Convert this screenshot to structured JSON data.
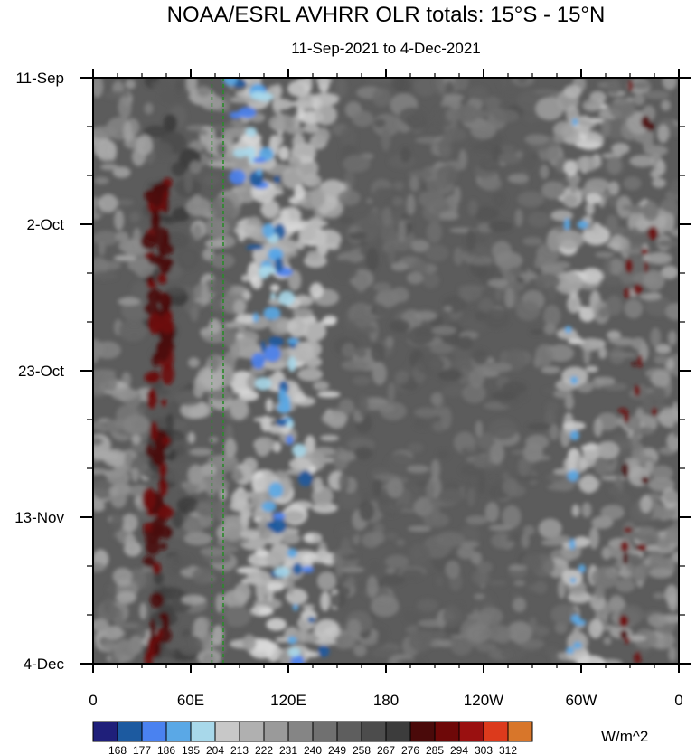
{
  "chart_data": {
    "type": "heatmap",
    "title": "NOAA/ESRL AVHRR OLR totals: 15°S - 15°N",
    "subtitle": "11-Sep-2021 to 4-Dec-2021",
    "x_tick_labels": [
      "0",
      "60E",
      "120E",
      "180",
      "120W",
      "60W",
      "0"
    ],
    "x_tick_lon": [
      0,
      60,
      120,
      180,
      240,
      300,
      360
    ],
    "xlim": [
      0,
      360
    ],
    "y_tick_labels": [
      "11-Sep",
      "2-Oct",
      "23-Oct",
      "13-Nov",
      "4-Dec"
    ],
    "y_tick_day": [
      0,
      21,
      42,
      63,
      84
    ],
    "ylim": [
      0,
      84
    ],
    "colorbar_units": "W/m^2",
    "colorbar_levels": [
      "168",
      "177",
      "186",
      "195",
      "204",
      "213",
      "222",
      "231",
      "240",
      "249",
      "258",
      "267",
      "276",
      "285",
      "294",
      "303",
      "312"
    ],
    "colorbar_colors": [
      "#1f1f7a",
      "#1c5aa0",
      "#4a82f0",
      "#5aa8e6",
      "#a8d8ea",
      "#c8c8c8",
      "#b0b0b0",
      "#9a9a9a",
      "#858585",
      "#707070",
      "#5e5e5e",
      "#4c4c4c",
      "#3c3c3c",
      "#4a0a0a",
      "#6e0808",
      "#9a1010",
      "#dc3a1c",
      "#d8762a"
    ],
    "reference_lines_lon": [
      73,
      80
    ],
    "reference_line_color": "#2a8a2a",
    "features": {
      "convective_band_lon": [
        90,
        150
      ],
      "dry_band_lon": [
        35,
        60
      ],
      "pacific_mid_gray_lon": [
        150,
        280
      ],
      "south_america_band_lon": [
        290,
        310
      ]
    }
  }
}
